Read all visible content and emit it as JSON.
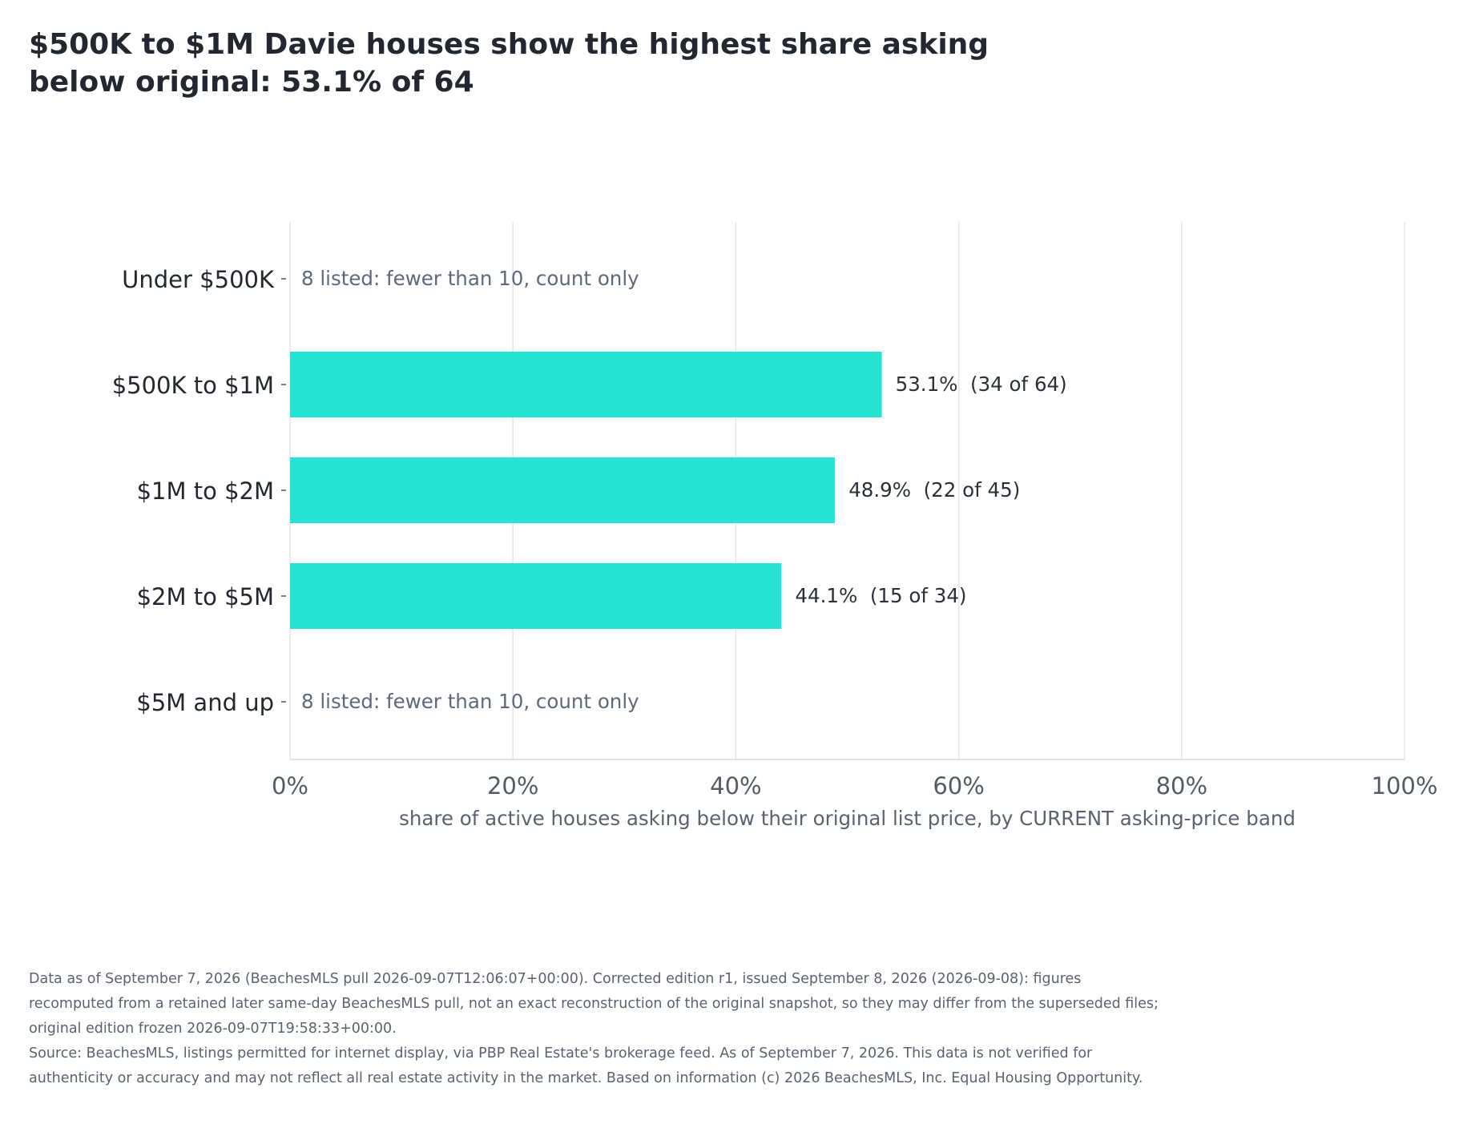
{
  "title": "$500K to $1M Davie houses show the highest share asking below original: 53.1% of 64",
  "chart_data": {
    "type": "bar",
    "orientation": "horizontal",
    "xlabel": "share of active houses asking below their original list price, by CURRENT asking-price band",
    "xlim": [
      0,
      100
    ],
    "x_ticks": [
      "0%",
      "20%",
      "40%",
      "60%",
      "80%",
      "100%"
    ],
    "x_tick_values": [
      0,
      20,
      40,
      60,
      80,
      100
    ],
    "grid": "vertical",
    "bar_color": "#26e3d4",
    "categories": [
      "Under $500K",
      "$500K to $1M",
      "$1M to $2M",
      "$2M to $5M",
      "$5M and up"
    ],
    "values": [
      null,
      53.1,
      48.9,
      44.1,
      null
    ],
    "data_labels": [
      "8 listed: fewer than 10, count only",
      "53.1%  (34 of 64)",
      "48.9%  (22 of 45)",
      "44.1%  (15 of 34)",
      "8 listed: fewer than 10, count only"
    ]
  },
  "footnotes": {
    "edition": "Data as of September 7, 2026 (BeachesMLS pull 2026-09-07T12:06:07+00:00). Corrected edition r1, issued September 8, 2026 (2026-09-08): figures recomputed from a retained later same-day BeachesMLS pull, not an exact reconstruction of the original snapshot, so they may differ from the superseded files; original edition frozen 2026-09-07T19:58:33+00:00.",
    "source": "Source: BeachesMLS, listings permitted for internet display, via PBP Real Estate's brokerage feed. As of September 7, 2026. This data is not verified for authenticity or accuracy and may not reflect all real estate activity in the market. Based on information (c) 2026 BeachesMLS, Inc. Equal Housing Opportunity."
  }
}
